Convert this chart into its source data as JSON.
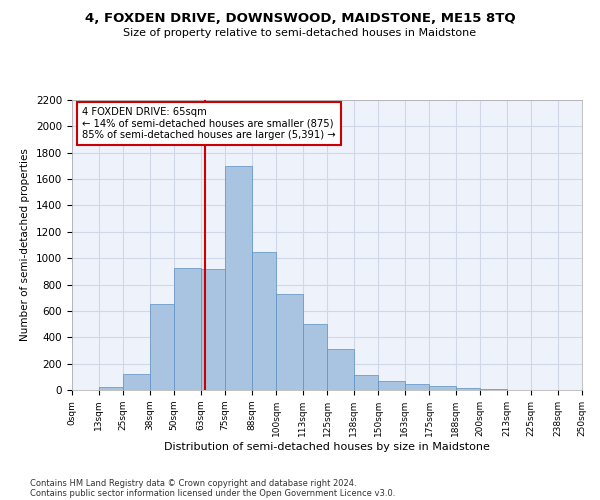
{
  "title": "4, FOXDEN DRIVE, DOWNSWOOD, MAIDSTONE, ME15 8TQ",
  "subtitle": "Size of property relative to semi-detached houses in Maidstone",
  "xlabel": "Distribution of semi-detached houses by size in Maidstone",
  "ylabel": "Number of semi-detached properties",
  "footer1": "Contains HM Land Registry data © Crown copyright and database right 2024.",
  "footer2": "Contains public sector information licensed under the Open Government Licence v3.0.",
  "annotation_line1": "4 FOXDEN DRIVE: 65sqm",
  "annotation_line2": "← 14% of semi-detached houses are smaller (875)",
  "annotation_line3": "85% of semi-detached houses are larger (5,391) →",
  "property_size": 65,
  "bar_color": "#a8c4e0",
  "bar_edge_color": "#5b8fc4",
  "grid_color": "#d0d8e8",
  "background_color": "#eef2fa",
  "red_line_color": "#cc0000",
  "annotation_box_color": "#ffffff",
  "annotation_border_color": "#cc0000",
  "bin_edges": [
    0,
    13,
    25,
    38,
    50,
    63,
    75,
    88,
    100,
    113,
    125,
    138,
    150,
    163,
    175,
    188,
    200,
    213,
    225,
    238,
    250
  ],
  "bin_labels": [
    "0sqm",
    "13sqm",
    "25sqm",
    "38sqm",
    "50sqm",
    "63sqm",
    "75sqm",
    "88sqm",
    "100sqm",
    "113sqm",
    "125sqm",
    "138sqm",
    "150sqm",
    "163sqm",
    "175sqm",
    "188sqm",
    "200sqm",
    "213sqm",
    "225sqm",
    "238sqm",
    "250sqm"
  ],
  "counts": [
    0,
    20,
    125,
    650,
    925,
    920,
    1700,
    1050,
    725,
    500,
    310,
    115,
    65,
    45,
    30,
    15,
    5,
    2,
    1,
    0
  ],
  "ylim": [
    0,
    2200
  ],
  "yticks": [
    0,
    200,
    400,
    600,
    800,
    1000,
    1200,
    1400,
    1600,
    1800,
    2000,
    2200
  ]
}
